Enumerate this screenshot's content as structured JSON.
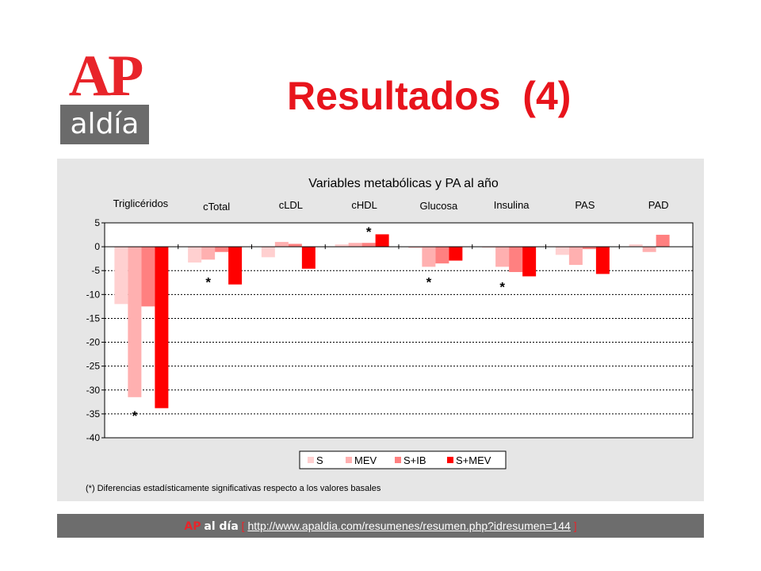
{
  "logo": {
    "ap": "AP",
    "aldia": "aldía"
  },
  "slide": {
    "title": "Resultados  (4)"
  },
  "footnote": "(*)  Diferencias estadísticamente significativas respecto a los valores basales",
  "footer": {
    "brand_ap": "AP",
    "brand_aldia": "al día",
    "bracket_open": "[",
    "url": "http://www.apaldia.com/resumenes/resumen.php?idresumen=144",
    "bracket_close": "]"
  },
  "colors": {
    "S": "#ffd0d0",
    "MEV": "#ffb0b0",
    "S+IB": "#ff8080",
    "S+MEV": "#ff0000",
    "title": "#e8141c"
  },
  "chart_data": {
    "type": "bar",
    "title": "Variables metabólicas y PA al año",
    "categories": [
      "Triglicéridos",
      "cTotal",
      "cLDL",
      "cHDL",
      "Glucosa",
      "Insulina",
      "PAS",
      "PAD"
    ],
    "ylim": [
      -40,
      5
    ],
    "yticks": [
      5,
      0,
      -5,
      -10,
      -15,
      -20,
      -25,
      -30,
      -35,
      -40
    ],
    "series": [
      {
        "name": "S",
        "values": [
          -12,
          -3.3,
          -2.2,
          0.5,
          -0.3,
          -0.2,
          -1.7,
          0.5
        ]
      },
      {
        "name": "MEV",
        "values": [
          -31.5,
          -2.7,
          1.0,
          0.8,
          -4.2,
          -4.2,
          -3.8,
          -1.1
        ]
      },
      {
        "name": "S+IB",
        "values": [
          -12.5,
          -1.1,
          0.6,
          0.8,
          -3.5,
          -5.3,
          -0.5,
          2.5
        ]
      },
      {
        "name": "S+MEV",
        "values": [
          -33.8,
          -7.9,
          -4.6,
          2.6,
          -2.9,
          -6.2,
          -5.7,
          0
        ]
      }
    ],
    "annotations": [
      {
        "text": "*",
        "category": "Triglicéridos",
        "series": "MEV",
        "y": -35
      },
      {
        "text": "*",
        "category": "cTotal",
        "series": "MEV",
        "y": -7
      },
      {
        "text": "*",
        "category": "cHDL",
        "series": "S+IB",
        "y": 3.5
      },
      {
        "text": "*",
        "category": "Glucosa",
        "series": "MEV",
        "y": -7
      },
      {
        "text": "*",
        "category": "Insulina",
        "series": "MEV",
        "y": -8
      }
    ],
    "grid": true,
    "legend": "bottom"
  }
}
